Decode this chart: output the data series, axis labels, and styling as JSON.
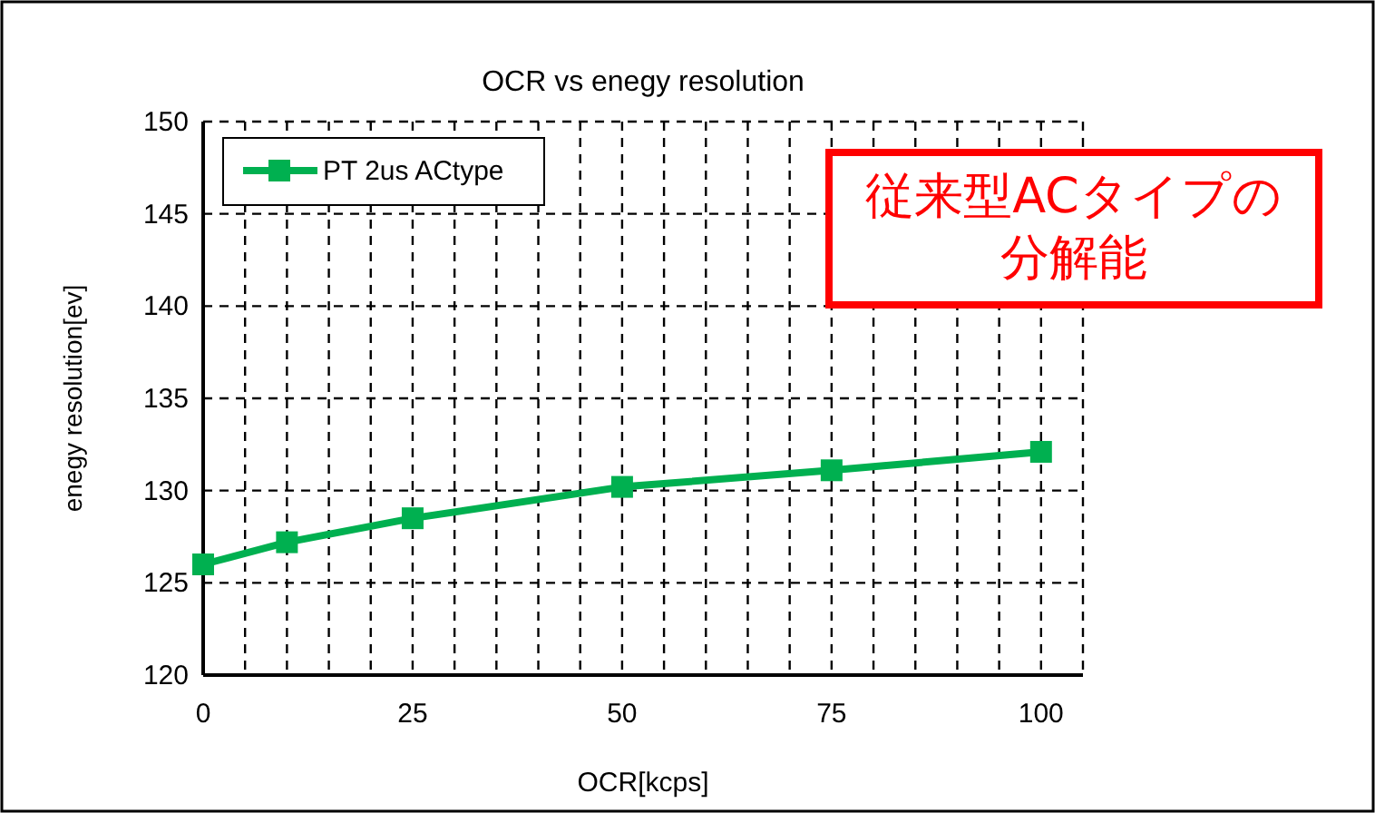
{
  "chart_data": {
    "type": "line",
    "title": "OCR vs enegy resolution",
    "xlabel": "OCR[kcps]",
    "ylabel": "enegy resolution[ev]",
    "annotations": [
      "従来型ACタイプの分解能"
    ],
    "x": [
      0,
      10,
      25,
      50,
      75,
      100
    ],
    "series": [
      {
        "name": "PT 2us ACtype",
        "color": "#00b050",
        "values": [
          126.0,
          127.2,
          128.5,
          130.2,
          131.1,
          132.1
        ]
      }
    ],
    "xlim": [
      0,
      105
    ],
    "xticks": [
      0,
      {
        "value": 5,
        "label": null
      },
      {
        "value": 10,
        "label": null
      },
      {
        "value": 15,
        "label": null
      },
      {
        "value": 20,
        "label": null
      },
      25,
      {
        "value": 30,
        "label": null
      },
      {
        "value": 35,
        "label": null
      },
      {
        "value": 40,
        "label": null
      },
      {
        "value": 45,
        "label": null
      },
      50,
      {
        "value": 55,
        "label": null
      },
      {
        "value": 60,
        "label": null
      },
      {
        "value": 65,
        "label": null
      },
      {
        "value": 70,
        "label": null
      },
      75,
      {
        "value": 80,
        "label": null
      },
      {
        "value": 85,
        "label": null
      },
      {
        "value": 90,
        "label": null
      },
      {
        "value": 95,
        "label": null
      },
      100,
      {
        "value": 105,
        "label": null
      }
    ],
    "ylim": [
      120,
      150
    ],
    "yticks": [
      120,
      125,
      130,
      135,
      140,
      145,
      150
    ],
    "grid": true,
    "legend": "top left",
    "marker": "square",
    "line_style": "solid"
  }
}
